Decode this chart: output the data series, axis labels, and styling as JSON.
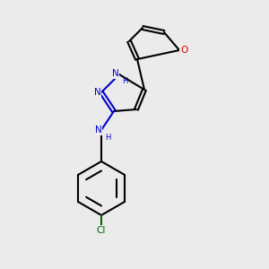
{
  "bg_color": "#ebebeb",
  "bond_color": "#000000",
  "bond_lw": 1.5,
  "atom_colors": {
    "N": "#0000cc",
    "O": "#dd0000",
    "Cl": "#006600",
    "C": "#000000"
  },
  "font_size": 7.5,
  "font_size_small": 6.0
}
